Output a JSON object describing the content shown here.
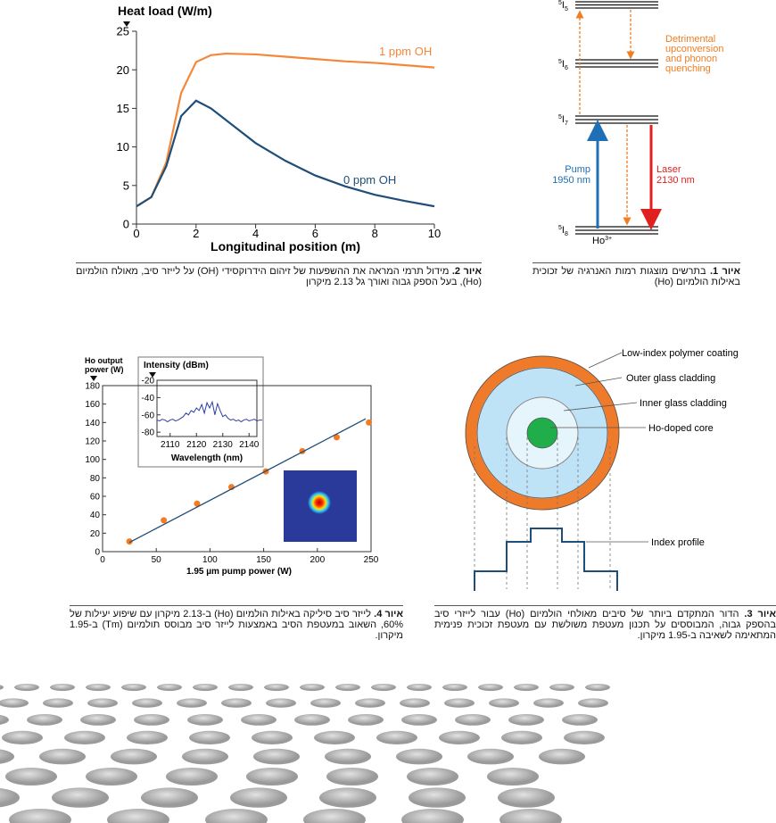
{
  "chart_data": [
    {
      "type": "line",
      "y_title": "Heat load (W/m)",
      "x_title": "Longitudinal position (m)",
      "x": [
        0,
        0.5,
        1,
        1.5,
        2,
        2.5,
        3,
        4,
        5,
        6,
        7,
        8,
        9,
        10
      ],
      "series": [
        {
          "name": "1 ppm OH",
          "color": "#f4873a",
          "values": [
            2.3,
            3.5,
            8,
            17,
            21,
            21.9,
            22.1,
            22,
            21.7,
            21.4,
            21.1,
            20.9,
            20.6,
            20.3
          ]
        },
        {
          "name": "0 ppm OH",
          "color": "#1f4e79",
          "values": [
            2.3,
            3.5,
            7.5,
            14,
            16,
            15,
            13.5,
            10.5,
            8.2,
            6.3,
            4.9,
            3.8,
            3,
            2.3
          ]
        }
      ],
      "xlim": [
        0,
        10
      ],
      "xticks": [
        0,
        2,
        4,
        6,
        8,
        10
      ],
      "ylim": [
        0,
        25
      ],
      "yticks": [
        0,
        5,
        10,
        15,
        20,
        25
      ]
    },
    {
      "type": "scatter",
      "y_title": [
        "Ho output",
        "power (W)"
      ],
      "x_title": "1.95 µm pump power (W)",
      "series": [
        {
          "color": "#f47b20",
          "x": [
            25,
            57,
            88,
            120,
            152,
            186,
            218,
            248
          ],
          "values": [
            11,
            34,
            52,
            70,
            87,
            109,
            124,
            140
          ]
        },
        {
          "color": "#1f4e79",
          "line": true,
          "x": [
            25,
            245
          ],
          "values": [
            10,
            144
          ]
        }
      ],
      "xlim": [
        0,
        250
      ],
      "xticks": [
        0,
        50,
        100,
        150,
        200,
        250
      ],
      "ylim": [
        0,
        180
      ],
      "yticks": [
        0,
        20,
        40,
        60,
        80,
        100,
        120,
        140,
        160,
        180
      ]
    },
    {
      "type": "line",
      "y_title": "Intensity (dBm)",
      "x_title": "Wavelength (nm)",
      "x": [
        2105,
        2106,
        2107,
        2108,
        2109,
        2110,
        2111,
        2112,
        2113,
        2114,
        2115,
        2116,
        2117,
        2118,
        2119,
        2120,
        2121,
        2122,
        2123,
        2124,
        2125,
        2126,
        2127,
        2128,
        2129,
        2130,
        2131,
        2132,
        2133,
        2134,
        2135,
        2136,
        2137,
        2138,
        2139,
        2140,
        2141,
        2142,
        2143,
        2144,
        2145
      ],
      "series": [
        {
          "color": "#2e3f9e",
          "values": [
            -66,
            -67,
            -65,
            -66,
            -68,
            -66,
            -65,
            -67,
            -66,
            -64,
            -62,
            -58,
            -60,
            -55,
            -57,
            -52,
            -55,
            -48,
            -58,
            -46,
            -52,
            -45,
            -60,
            -47,
            -55,
            -62,
            -60,
            -64,
            -66,
            -65,
            -67,
            -66,
            -68,
            -66,
            -65,
            -67,
            -66,
            -65,
            -67,
            -66,
            -66
          ]
        }
      ],
      "xlim": [
        2105,
        2145
      ],
      "xticks": [
        2110,
        2120,
        2130,
        2140
      ],
      "ylim": [
        -85,
        -20
      ],
      "yticks": [
        -20,
        -40,
        -60,
        -80
      ]
    }
  ],
  "energy_diagram": {
    "levels": [
      {
        "sup": "5",
        "letter": "I",
        "sub": "5"
      },
      {
        "sup": "5",
        "letter": "I",
        "sub": "6"
      },
      {
        "sup": "5",
        "letter": "I",
        "sub": "7"
      },
      {
        "sup": "5",
        "letter": "I",
        "sub": "8"
      }
    ],
    "upconversion": [
      "Detrimental",
      "upconversion",
      "and phonon",
      "quenching"
    ],
    "pump": [
      "Pump",
      "1950 nm"
    ],
    "laser": [
      "Laser",
      "2130 nm"
    ],
    "ion": {
      "base": "Ho",
      "sup": "3+"
    }
  },
  "fiber_diagram": {
    "labels": [
      "Low-index polymer coating",
      "Outer glass cladding",
      "Inner glass cladding",
      "Ho-doped core"
    ],
    "profile_label": "Index profile"
  },
  "captions": {
    "fig1": {
      "label": "איור 1.",
      "text": " בתרשים מוצגות רמות האנרגיה של זכוכית באילות הולמיום (Ho)"
    },
    "fig2": {
      "label": "איור 2.",
      "text": " מידול תרמי המראה את ההשפעות של זיהום הידרוקסידי (OH) על לייזר סיב, מאולח הולמיום (Ho), בעל הספק גבוה ואורך גל 2.13 מיקרון"
    },
    "fig3": {
      "label": "איור 3.",
      "text": " הדור המתקדם ביותר של סיבים מאולחי הולמיום (Ho) עבור לייזרי סיב בהספק גבוה, המבוססים על תכנון מעטפת משולשת עם מעטפת זכוכית פנימית המתאימה לשאיבה ב-1.95 מיקרון."
    },
    "fig4": {
      "label": "איור 4.",
      "text": " לייזר סיב סיליקה באילות הולמיום (Ho) ב-2.13 מיקרון עם שיפוע יעילות של 60%, השאוב במעטפת הסיב באמצעות לייזר סיב מבוסס תולמיום (Tm) ב-1.95 מיקרון."
    }
  }
}
